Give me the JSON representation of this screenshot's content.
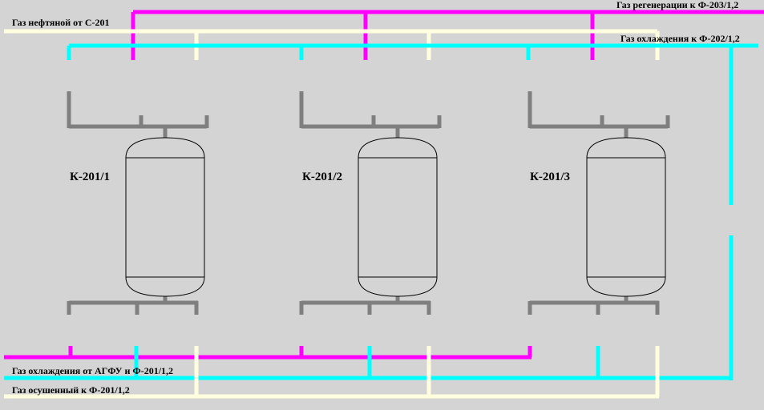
{
  "colors": {
    "background": "#d4d4d4",
    "regeneration": "#ff00ff",
    "cooling": "#00ffff",
    "oil_gas": "#ffffe0",
    "dried": "#ffffe0",
    "manifold": "#7f7f7f",
    "vessel_fill": "#d4d4d4",
    "vessel_stroke": "#000000"
  },
  "lines": {
    "oil_gas_inlet": "Газ нефтяной от С-201",
    "regen_out": "Газ регенерации к Ф-203/1,2",
    "cooling_out": "Газ охлаждения к Ф-202/1,2",
    "cooling_in": "Газ охлаждения от АГФУ и Ф-201/1,2",
    "dried_out": "Газ осушенный к Ф-201/1,2"
  },
  "vessels": [
    {
      "label": "К-201/1"
    },
    {
      "label": "К-201/2"
    },
    {
      "label": "К-201/3"
    }
  ]
}
